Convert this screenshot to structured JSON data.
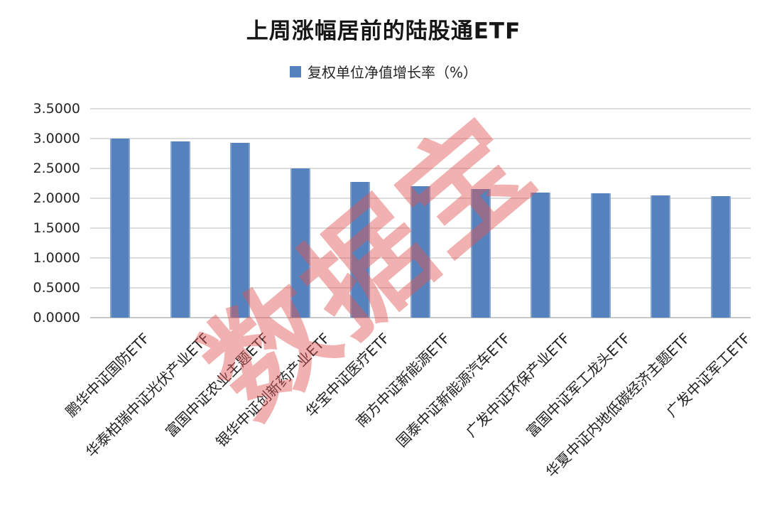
{
  "chart_data": {
    "type": "bar",
    "title": "上周涨幅居前的陆股通ETF",
    "legend": {
      "label": "复权单位净值增长率（%）",
      "position": "top"
    },
    "categories": [
      "鹏华中证国防ETF",
      "华泰柏瑞中证光伏产业ETF",
      "富国中证农业主题ETF",
      "银华中证创新药产业ETF",
      "华宝中证医疗ETF",
      "南方中证新能源ETF",
      "国泰中证新能源汽车ETF",
      "广发中证环保产业ETF",
      "富国中证军工龙头ETF",
      "华夏中证内地低碳经济主题ETF",
      "广发中证军工ETF"
    ],
    "values": [
      3.0,
      2.95,
      2.93,
      2.5,
      2.27,
      2.2,
      2.16,
      2.1,
      2.08,
      2.05,
      2.03
    ],
    "xlabel": "",
    "ylabel": "",
    "ylim": [
      0,
      3.5
    ],
    "ytick_step": 0.5,
    "ytick_labels": [
      "3.5000",
      "3.0000",
      "2.5000",
      "2.0000",
      "1.5000",
      "1.0000",
      "0.5000",
      "0.0000"
    ],
    "grid": true,
    "colors": {
      "bar": "#5581BD",
      "bar_edge_highlight": "rgba(255,255,255,0.28)",
      "gridline": "#DCDCDC",
      "axis_baseline": "#C8C8C8",
      "title_text": "#161616",
      "axis_text": "#262626"
    },
    "watermark": {
      "text": "数据宝",
      "color": "rgba(224,90,88,0.47)",
      "rotation_deg": -40
    }
  }
}
